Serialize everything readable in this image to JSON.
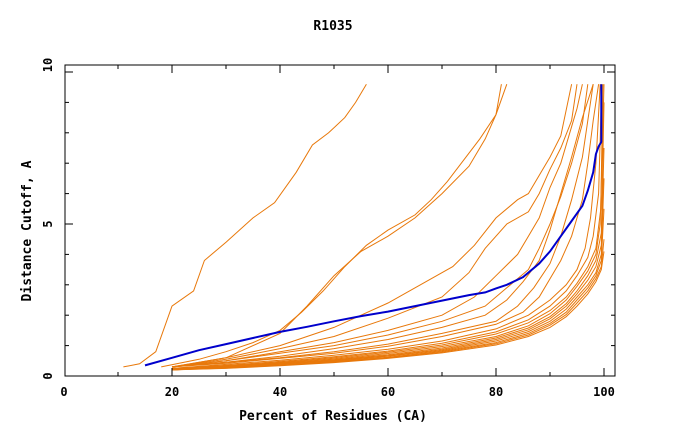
{
  "chart_data": {
    "type": "line",
    "title": "R1035",
    "xlabel": "Percent of Residues (CA)",
    "ylabel": "Distance Cutoff, A",
    "xlim": [
      0,
      100
    ],
    "ylim": [
      0,
      10
    ],
    "xticks": [
      "0",
      "20",
      "40",
      "60",
      "80",
      "100"
    ],
    "yticks": [
      "0",
      "5",
      "10"
    ],
    "grid": false,
    "legend": "none",
    "colors": {
      "background": "#ffffff",
      "axes": "#000000",
      "highlight": "#0000cc",
      "others": "#e8780a"
    },
    "highlight": {
      "x": [
        15,
        20,
        25,
        30,
        35,
        40,
        45,
        50,
        55,
        60,
        65,
        70,
        75,
        78,
        80,
        82,
        85,
        88,
        90,
        92,
        94,
        96,
        97,
        98,
        98.5,
        99,
        99.5,
        99.5
      ],
      "y": [
        0.35,
        0.6,
        0.85,
        1.05,
        1.25,
        1.45,
        1.62,
        1.8,
        1.97,
        2.12,
        2.3,
        2.48,
        2.66,
        2.75,
        2.88,
        3.0,
        3.25,
        3.7,
        4.1,
        4.6,
        5.1,
        5.6,
        6.1,
        6.7,
        7.3,
        7.55,
        7.7,
        9.6
      ]
    },
    "series": [
      {
        "x": [
          11,
          14,
          17,
          20,
          24,
          26,
          30,
          35,
          39,
          43,
          46,
          49,
          52,
          54,
          56
        ],
        "y": [
          0.3,
          0.4,
          0.8,
          2.3,
          2.8,
          3.8,
          4.4,
          5.2,
          5.7,
          6.7,
          7.6,
          8.0,
          8.5,
          9.0,
          9.6
        ]
      },
      {
        "x": [
          18,
          25,
          30,
          35,
          40,
          44,
          48,
          52,
          56,
          60,
          65,
          68,
          71,
          74,
          77,
          80,
          82
        ],
        "y": [
          0.3,
          0.55,
          0.8,
          1.1,
          1.5,
          2.1,
          2.8,
          3.6,
          4.3,
          4.8,
          5.3,
          5.8,
          6.4,
          7.1,
          7.8,
          8.6,
          9.6
        ]
      },
      {
        "x": [
          20,
          30,
          40,
          45,
          50,
          55,
          60,
          65,
          70,
          75,
          78,
          80,
          81
        ],
        "y": [
          0.3,
          0.6,
          1.4,
          2.3,
          3.3,
          4.1,
          4.6,
          5.2,
          6.0,
          6.9,
          7.8,
          8.6,
          9.6
        ]
      },
      {
        "x": [
          20,
          30,
          40,
          50,
          60,
          66,
          72,
          76,
          80,
          84,
          86,
          88,
          90,
          92,
          94
        ],
        "y": [
          0.3,
          0.6,
          1.0,
          1.6,
          2.4,
          3.0,
          3.6,
          4.3,
          5.2,
          5.8,
          6.0,
          6.6,
          7.2,
          7.9,
          9.6
        ]
      },
      {
        "x": [
          20,
          30,
          40,
          50,
          60,
          70,
          75,
          78,
          82,
          86,
          88,
          90,
          92,
          94,
          95
        ],
        "y": [
          0.3,
          0.55,
          0.9,
          1.3,
          1.9,
          2.6,
          3.4,
          4.2,
          5.0,
          5.4,
          6.0,
          6.8,
          7.5,
          8.4,
          9.6
        ]
      },
      {
        "x": [
          20,
          30,
          40,
          50,
          60,
          70,
          76,
          80,
          84,
          86,
          88,
          90,
          92,
          94,
          95,
          96
        ],
        "y": [
          0.3,
          0.5,
          0.8,
          1.1,
          1.5,
          2.0,
          2.6,
          3.3,
          4.0,
          4.6,
          5.2,
          6.2,
          7.0,
          8.2,
          8.8,
          9.6
        ]
      },
      {
        "x": [
          20,
          30,
          40,
          50,
          60,
          70,
          78,
          82,
          86,
          88,
          90,
          92,
          94,
          96,
          97
        ],
        "y": [
          0.3,
          0.5,
          0.75,
          1.0,
          1.35,
          1.8,
          2.3,
          2.9,
          3.5,
          4.2,
          5.0,
          5.9,
          7.0,
          8.3,
          9.6
        ]
      },
      {
        "x": [
          20,
          30,
          40,
          50,
          60,
          70,
          78,
          82,
          85,
          88,
          90,
          92,
          94,
          96,
          98
        ],
        "y": [
          0.3,
          0.45,
          0.65,
          0.9,
          1.2,
          1.6,
          2.0,
          2.5,
          3.1,
          3.8,
          4.8,
          6.0,
          7.2,
          8.5,
          9.6
        ]
      },
      {
        "x": [
          20,
          30,
          40,
          50,
          60,
          70,
          80,
          84,
          87,
          90,
          92,
          94,
          96,
          97,
          98
        ],
        "y": [
          0.3,
          0.45,
          0.6,
          0.8,
          1.05,
          1.4,
          1.8,
          2.3,
          2.9,
          3.7,
          4.6,
          5.8,
          7.2,
          8.4,
          9.6
        ]
      },
      {
        "x": [
          20,
          30,
          40,
          50,
          60,
          70,
          80,
          85,
          88,
          90,
          92,
          94,
          96,
          97,
          98,
          99
        ],
        "y": [
          0.3,
          0.42,
          0.58,
          0.75,
          0.98,
          1.3,
          1.7,
          2.1,
          2.6,
          3.2,
          3.8,
          4.6,
          5.8,
          7.0,
          8.4,
          9.6
        ]
      },
      {
        "x": [
          20,
          30,
          40,
          50,
          60,
          70,
          80,
          86,
          90,
          93,
          95,
          96.5,
          97.5,
          98.5,
          99.3
        ],
        "y": [
          0.25,
          0.38,
          0.52,
          0.68,
          0.88,
          1.15,
          1.55,
          2.0,
          2.5,
          3.0,
          3.5,
          4.2,
          5.2,
          7.0,
          9.6
        ]
      },
      {
        "x": [
          20,
          30,
          40,
          50,
          60,
          70,
          80,
          86,
          90,
          93,
          95,
          97,
          98,
          99,
          99.6
        ],
        "y": [
          0.25,
          0.35,
          0.48,
          0.63,
          0.82,
          1.08,
          1.45,
          1.85,
          2.3,
          2.8,
          3.3,
          3.9,
          4.6,
          6.0,
          9.6
        ]
      },
      {
        "x": [
          20,
          30,
          40,
          50,
          60,
          70,
          80,
          86,
          90,
          93,
          95,
          97,
          98.5,
          99.4,
          99.8
        ],
        "y": [
          0.22,
          0.33,
          0.45,
          0.6,
          0.78,
          1.02,
          1.38,
          1.75,
          2.15,
          2.6,
          3.05,
          3.6,
          4.2,
          5.5,
          9.6
        ]
      },
      {
        "x": [
          20,
          30,
          40,
          50,
          60,
          70,
          80,
          86,
          90,
          93,
          95,
          97,
          98.5,
          99.3,
          100
        ],
        "y": [
          0.22,
          0.32,
          0.43,
          0.57,
          0.74,
          0.97,
          1.3,
          1.65,
          2.05,
          2.5,
          2.95,
          3.45,
          4.0,
          5.0,
          9.6
        ]
      },
      {
        "x": [
          20,
          30,
          40,
          50,
          60,
          70,
          80,
          86,
          90,
          93,
          95,
          97,
          98.5,
          99.5,
          100
        ],
        "y": [
          0.2,
          0.3,
          0.41,
          0.54,
          0.7,
          0.92,
          1.25,
          1.58,
          1.95,
          2.38,
          2.8,
          3.3,
          3.8,
          4.7,
          9.0
        ]
      },
      {
        "x": [
          20,
          30,
          40,
          50,
          60,
          70,
          80,
          86,
          90,
          93,
          95,
          97,
          98.5,
          99.5,
          100
        ],
        "y": [
          0.2,
          0.29,
          0.39,
          0.52,
          0.67,
          0.88,
          1.2,
          1.52,
          1.88,
          2.3,
          2.7,
          3.15,
          3.6,
          4.3,
          7.5
        ]
      },
      {
        "x": [
          20,
          30,
          40,
          50,
          60,
          70,
          80,
          86,
          90,
          93,
          95,
          97,
          98.5,
          99.5,
          100
        ],
        "y": [
          0.2,
          0.28,
          0.38,
          0.5,
          0.65,
          0.85,
          1.15,
          1.46,
          1.8,
          2.2,
          2.6,
          3.0,
          3.4,
          4.0,
          6.5
        ]
      },
      {
        "x": [
          20,
          30,
          40,
          50,
          60,
          70,
          80,
          86,
          90,
          93,
          95,
          97,
          98.5,
          99.5,
          100
        ],
        "y": [
          0.2,
          0.27,
          0.36,
          0.48,
          0.62,
          0.82,
          1.1,
          1.4,
          1.73,
          2.1,
          2.5,
          2.9,
          3.3,
          3.8,
          5.5
        ]
      },
      {
        "x": [
          20,
          30,
          40,
          50,
          60,
          70,
          80,
          86,
          90,
          93,
          95,
          97,
          98.5,
          99.5,
          100
        ],
        "y": [
          0.2,
          0.26,
          0.35,
          0.46,
          0.6,
          0.79,
          1.06,
          1.35,
          1.67,
          2.02,
          2.4,
          2.8,
          3.2,
          3.6,
          4.5
        ]
      },
      {
        "x": [
          20,
          30,
          40,
          50,
          60,
          70,
          80,
          86,
          90,
          93,
          95,
          97,
          98.5,
          99.5,
          100
        ],
        "y": [
          0.2,
          0.25,
          0.34,
          0.44,
          0.58,
          0.76,
          1.02,
          1.3,
          1.6,
          1.95,
          2.3,
          2.7,
          3.1,
          3.5,
          4.1
        ]
      }
    ]
  }
}
